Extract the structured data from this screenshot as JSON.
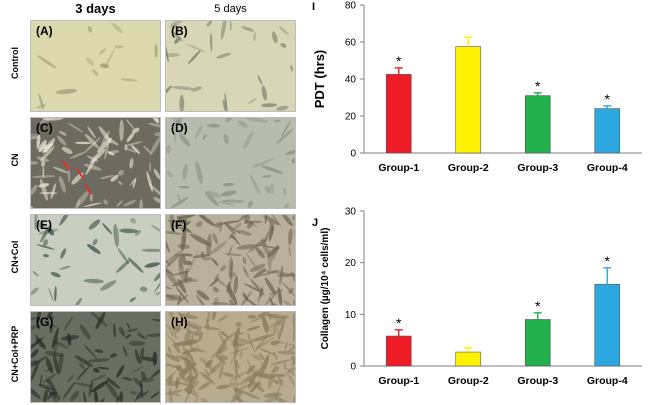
{
  "micrographs": {
    "column_headers": [
      "3 days",
      "5 days"
    ],
    "row_labels": [
      "Control",
      "CN",
      "CN+Col",
      "CN+Col+PRP"
    ],
    "panels": [
      {
        "label": "(A)",
        "bg": "#ddd9ae",
        "fg": "#9a9e7a",
        "density": 14
      },
      {
        "label": "(B)",
        "bg": "#d9d6b8",
        "fg": "#7a7e6a",
        "density": 30
      },
      {
        "label": "(C)",
        "bg": "#6f6a60",
        "fg": "#e8e2d0",
        "density": 80
      },
      {
        "label": "(D)",
        "bg": "#b8bcae",
        "fg": "#8b8f80",
        "density": 40
      },
      {
        "label": "(E)",
        "bg": "#c8cfc0",
        "fg": "#3e5548",
        "density": 38
      },
      {
        "label": "(F)",
        "bg": "#b8b09a",
        "fg": "#6e6552",
        "density": 140
      },
      {
        "label": "(G)",
        "bg": "#6a6e60",
        "fg": "#2a2d26",
        "density": 90
      },
      {
        "label": "(H)",
        "bg": "#b9ab8e",
        "fg": "#8a7c60",
        "density": 170
      }
    ],
    "arrow_color": "#e0302a"
  },
  "chart_data": [
    {
      "type": "bar",
      "panel_label": "I",
      "categories": [
        "Group-1",
        "Group-2",
        "Group-3",
        "Group-4"
      ],
      "values": [
        42.5,
        57.5,
        31,
        24
      ],
      "errors": [
        3.5,
        5,
        1.5,
        1.5
      ],
      "significance": [
        "*",
        "",
        "*",
        "*"
      ],
      "colors": [
        "#ee1c25",
        "#fff200",
        "#22b14c",
        "#2ca7e0"
      ],
      "ylabel": "PDT (hrs)",
      "ylim": [
        0,
        80
      ],
      "yticks": [
        0,
        20,
        40,
        60,
        80
      ],
      "grid": false
    },
    {
      "type": "bar",
      "panel_label": "J",
      "categories": [
        "Group-1",
        "Group-2",
        "Group-3",
        "Group-4"
      ],
      "values": [
        5.8,
        2.7,
        9,
        15.8
      ],
      "errors": [
        1.2,
        0.8,
        1.3,
        3.2
      ],
      "significance": [
        "*",
        "",
        "*",
        "*"
      ],
      "colors": [
        "#ee1c25",
        "#fff200",
        "#22b14c",
        "#2ca7e0"
      ],
      "ylabel": "Collagen (µg/10⁴ cells/ml)",
      "ylim": [
        0,
        30
      ],
      "yticks": [
        0,
        10,
        20,
        30
      ],
      "grid": false
    }
  ]
}
